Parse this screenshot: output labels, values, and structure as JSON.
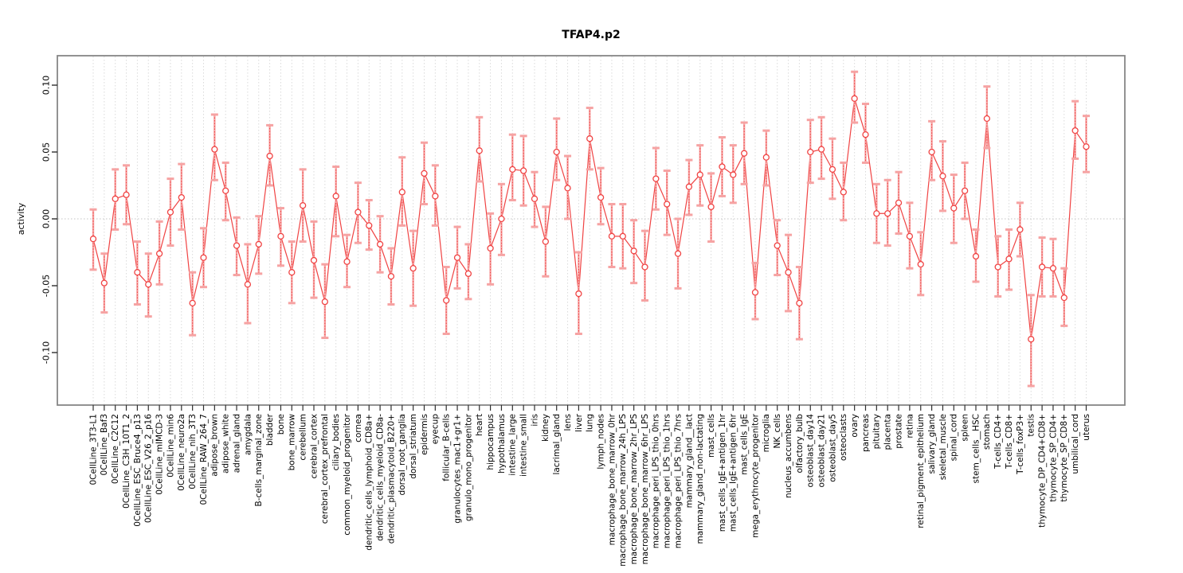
{
  "page": {
    "background": "#ffffff"
  },
  "figure": {
    "frame_color": "#868686",
    "tick_color": "#2e2e2e",
    "grid_color": "#dadada",
    "zero_line_color": "#c4c4c4",
    "text_color": "#000000",
    "series_color": "#f04343",
    "errorbar_light_color": "#f6a3a3",
    "marker_fill": "#ffffff"
  },
  "chart_data": {
    "type": "line",
    "title": "TFAP4.p2",
    "xlabel": "",
    "ylabel": "activity",
    "ylim": [
      -0.139,
      0.122
    ],
    "yticks": [
      -0.1,
      -0.05,
      0.0,
      0.05,
      0.1
    ],
    "grid": "vertical dotted line per category; dotted horizontal line at y=0",
    "legend_position": "none",
    "marker": "open-circle",
    "error_bars": true,
    "categories": [
      "0CellLine_3T3-L1",
      "0CellLine_Baf3",
      "0CellLine_C2C12",
      "0CellLine_C3H_10T1_2",
      "0CellLine_ESC_Bruce4_p13",
      "0CellLine_ESC_V26_2_p16",
      "0CellLine_mIMCD-3",
      "0CellLine_min6",
      "0CellLine_neuro2a",
      "0CellLine_nih_3T3",
      "0CellLine_RAW_264_7",
      "adipose_brown",
      "adipose_white",
      "adrenal_gland",
      "amygdala",
      "B-cells_marginal_zone",
      "bladder",
      "bone",
      "bone_marrow",
      "cerebellum",
      "cerebral_cortex",
      "cerebral_cortex_prefrontal",
      "ciliary_bodies",
      "common_myeloid_progenitor",
      "cornea",
      "dendritic_cells_lymphoid_CD8a+",
      "dendritic_cells_myeloid_CD8a-",
      "dendritic_plasmacytoid_B220+",
      "dorsal_root_ganglia",
      "dorsal_striatum",
      "epidermis",
      "eyecup",
      "follicular_B-cells",
      "granulocytes_mac1+gr1+",
      "granulo_mono_progenitor",
      "heart",
      "hippocampus",
      "hypothalamus",
      "intestine_large",
      "intestine_small",
      "iris",
      "kidney",
      "lacrimal_gland",
      "lens",
      "liver",
      "lung",
      "lymph_nodes",
      "macrophage_bone_marrow_0hr",
      "macrophage_bone_marrow_24h_LPS",
      "macrophage_bone_marrow_2hr_LPS",
      "macrophage_bone_marrow_6hr_LPS",
      "macrophage_peri_LPS_thio_0hrs",
      "macrophage_peri_LPS_thio_1hrs",
      "macrophage_peri_LPS_thio_7hrs",
      "mammary_gland__lact",
      "mammary_gland_non-lactating",
      "mast_cells",
      "mast_cells_IgE+antigen_1hr",
      "mast_cells_IgE+antigen_6hr",
      "mast_cells_IgE",
      "mega_erythrocyte_progenitor",
      "microglia",
      "NK_cells",
      "nucleus_accumbens",
      "olfactory_bulb",
      "osteoblast_day14",
      "osteoblast_day21",
      "osteoblast_day5",
      "osteoclasts",
      "ovary",
      "pancreas",
      "pituitary",
      "placenta",
      "prostate",
      "retina",
      "retinal_pigment_epithelium",
      "salivary_gland",
      "skeletal_muscle",
      "spinal_cord",
      "spleen",
      "stem_cells__HSC",
      "stomach",
      "T-cells_CD4+",
      "T-cells_CD8+",
      "T-cells_foxP3+",
      "testis",
      "thymocyte_DP_CD4+CD8+",
      "thymocyte_SP_CD4+",
      "thymocyte_SP_CD8+",
      "umbilical_cord",
      "uterus"
    ],
    "values": [
      -0.015,
      -0.048,
      0.015,
      0.018,
      -0.04,
      -0.049,
      -0.026,
      0.005,
      0.016,
      -0.063,
      -0.029,
      0.052,
      0.021,
      -0.02,
      -0.049,
      -0.019,
      0.047,
      -0.013,
      -0.04,
      0.01,
      -0.031,
      -0.062,
      0.017,
      -0.032,
      0.005,
      -0.005,
      -0.019,
      -0.043,
      0.02,
      -0.037,
      0.034,
      0.017,
      -0.061,
      -0.029,
      -0.041,
      0.051,
      -0.022,
      0.0,
      0.037,
      0.036,
      0.015,
      -0.017,
      0.05,
      0.023,
      -0.056,
      0.06,
      0.016,
      -0.013,
      -0.013,
      -0.024,
      -0.036,
      0.03,
      0.011,
      -0.026,
      0.024,
      0.033,
      0.009,
      0.039,
      0.033,
      0.049,
      -0.055,
      0.046,
      -0.02,
      -0.04,
      -0.063,
      0.05,
      0.052,
      0.037,
      0.02,
      0.09,
      0.063,
      0.004,
      0.004,
      0.012,
      -0.013,
      -0.034,
      0.05,
      0.032,
      0.008,
      0.021,
      -0.028,
      0.075,
      -0.036,
      -0.03,
      -0.008,
      -0.09,
      -0.036,
      -0.037,
      -0.059,
      0.066,
      0.054
    ],
    "err_high": [
      0.007,
      -0.026,
      0.037,
      0.04,
      -0.017,
      -0.026,
      -0.002,
      0.03,
      0.041,
      -0.04,
      -0.007,
      0.078,
      0.042,
      0.001,
      -0.019,
      0.002,
      0.07,
      0.008,
      -0.017,
      0.037,
      -0.002,
      -0.034,
      0.039,
      -0.012,
      0.027,
      0.014,
      0.002,
      -0.022,
      0.046,
      -0.009,
      0.057,
      0.04,
      -0.036,
      -0.006,
      -0.019,
      0.076,
      0.004,
      0.026,
      0.063,
      0.062,
      0.035,
      0.009,
      0.075,
      0.047,
      -0.025,
      0.083,
      0.038,
      0.011,
      0.011,
      -0.001,
      -0.009,
      0.053,
      0.036,
      0.0,
      0.044,
      0.055,
      0.034,
      0.061,
      0.055,
      0.072,
      -0.033,
      0.066,
      -0.001,
      -0.012,
      -0.036,
      0.074,
      0.076,
      0.06,
      0.042,
      0.11,
      0.086,
      0.026,
      0.029,
      0.035,
      0.012,
      -0.01,
      0.073,
      0.058,
      0.033,
      0.042,
      -0.008,
      0.099,
      -0.013,
      -0.008,
      0.012,
      -0.057,
      -0.014,
      -0.015,
      -0.037,
      0.088,
      0.077
    ],
    "err_low": [
      -0.038,
      -0.07,
      -0.008,
      -0.004,
      -0.064,
      -0.073,
      -0.049,
      -0.02,
      -0.008,
      -0.087,
      -0.051,
      0.029,
      -0.001,
      -0.042,
      -0.078,
      -0.041,
      0.025,
      -0.035,
      -0.063,
      -0.017,
      -0.059,
      -0.089,
      -0.013,
      -0.051,
      -0.018,
      -0.023,
      -0.04,
      -0.064,
      -0.005,
      -0.065,
      0.011,
      -0.005,
      -0.086,
      -0.052,
      -0.06,
      0.028,
      -0.049,
      -0.027,
      0.014,
      0.01,
      -0.006,
      -0.043,
      0.029,
      0.0,
      -0.086,
      0.037,
      -0.004,
      -0.036,
      -0.037,
      -0.048,
      -0.061,
      0.007,
      -0.012,
      -0.052,
      0.003,
      0.01,
      -0.017,
      0.017,
      0.012,
      0.026,
      -0.075,
      0.025,
      -0.042,
      -0.069,
      -0.09,
      0.027,
      0.03,
      0.015,
      -0.001,
      0.072,
      0.042,
      -0.018,
      -0.02,
      -0.011,
      -0.037,
      -0.057,
      0.029,
      0.006,
      -0.018,
      0.0,
      -0.047,
      0.053,
      -0.058,
      -0.053,
      -0.028,
      -0.125,
      -0.058,
      -0.058,
      -0.08,
      0.045,
      0.035
    ]
  }
}
